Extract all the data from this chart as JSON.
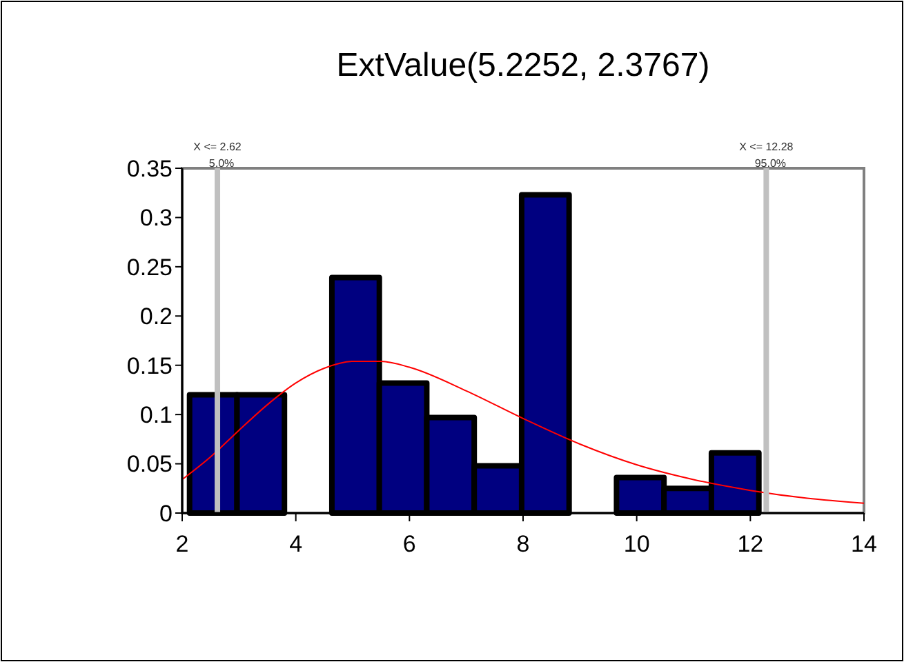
{
  "chart_data": {
    "type": "histogram",
    "title": "ExtValue(5.2252, 2.3767)",
    "bins": [
      2.13,
      2.965,
      3.8,
      4.635,
      5.47,
      6.305,
      7.14,
      7.975,
      8.81,
      9.645,
      10.48,
      11.315,
      12.15
    ],
    "series": [
      {
        "color": "#000080",
        "values": [
          0.12,
          0.12,
          0,
          0.239,
          0.132,
          0.097,
          0.048,
          0.323,
          0,
          0.036,
          0.025,
          0.061
        ]
      },
      {
        "type": "line",
        "color": "#ff0000",
        "x": [
          2,
          2.5,
          3,
          3.5,
          4,
          4.5,
          5,
          5.5,
          6,
          7,
          8,
          9,
          10,
          11,
          12,
          13,
          14
        ],
        "values": [
          0.034,
          0.057,
          0.084,
          0.11,
          0.132,
          0.147,
          0.154,
          0.154,
          0.148,
          0.124,
          0.096,
          0.07,
          0.049,
          0.034,
          0.023,
          0.015,
          0.01
        ]
      }
    ],
    "xlim": [
      2,
      14
    ],
    "xticks": [
      2,
      4,
      6,
      8,
      10,
      12,
      14
    ],
    "ylim": [
      0,
      0.35
    ],
    "yticks": [
      0,
      0.05,
      0.1,
      0.15,
      0.2,
      0.25,
      0.3,
      0.35
    ],
    "ref_lines": [
      {
        "axis": "x",
        "value": 2.62,
        "label": "X <= 2.62\n5.0%",
        "color": "#c0c0c0"
      },
      {
        "axis": "x",
        "value": 12.28,
        "label": "X <= 12.28\n95.0%",
        "color": "#c0c0c0"
      }
    ],
    "grid": false
  }
}
